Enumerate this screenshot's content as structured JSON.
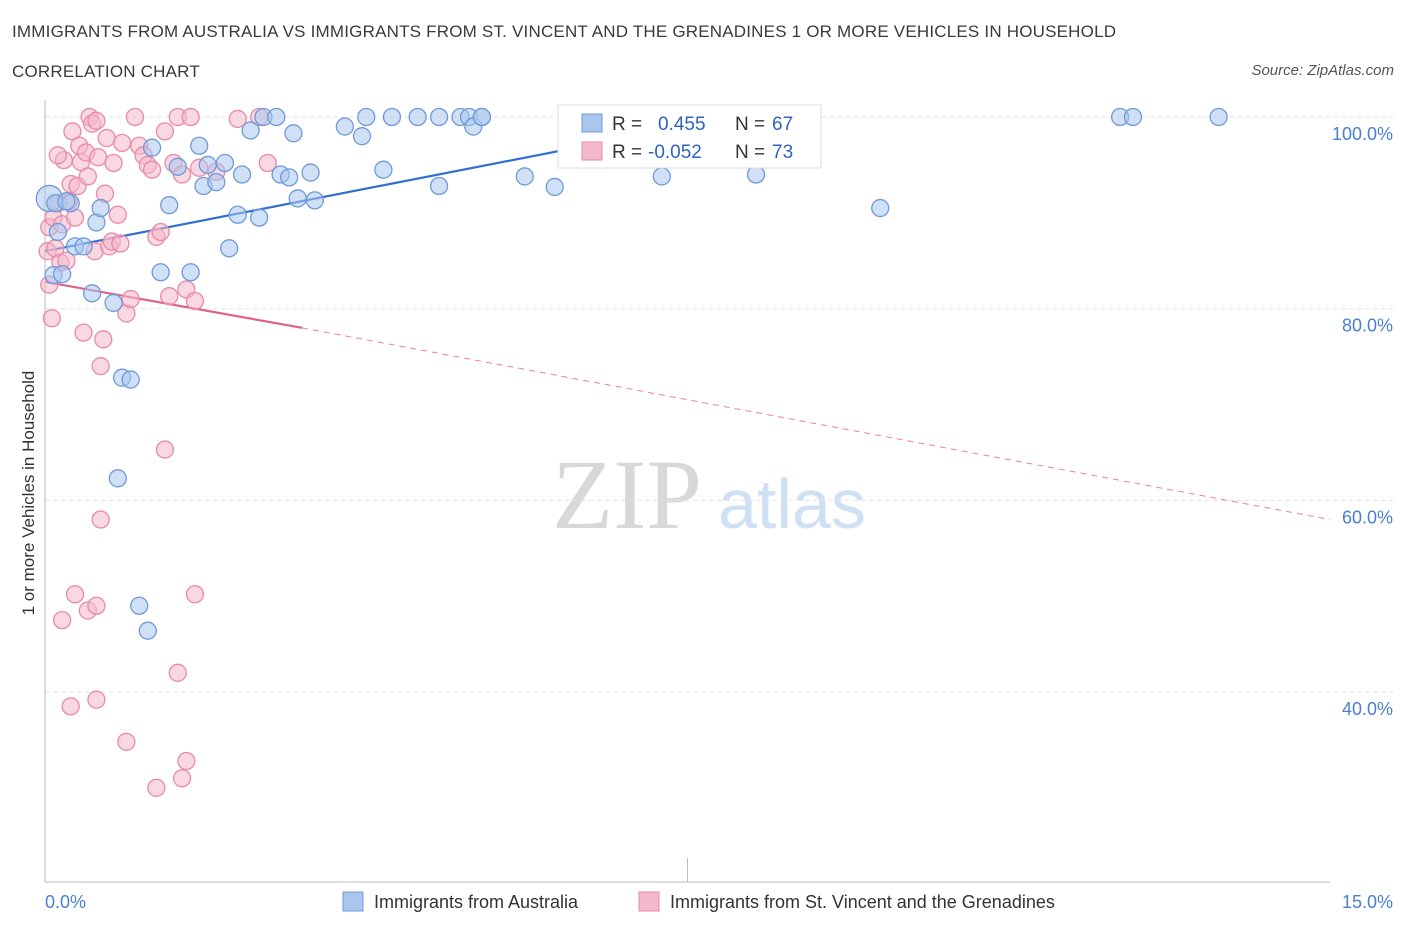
{
  "title": "IMMIGRANTS FROM AUSTRALIA VS IMMIGRANTS FROM ST. VINCENT AND THE GRENADINES 1 OR MORE VEHICLES IN HOUSEHOLD",
  "subtitle": "CORRELATION CHART",
  "source": "Source: ZipAtlas.com",
  "watermark": {
    "zip": "ZIP",
    "atlas": "atlas"
  },
  "colors": {
    "blue_fill": "#a9c6ee",
    "blue_stroke": "#6f9ad8",
    "blue_line": "#2f6fd0",
    "pink_fill": "#f4b8cb",
    "pink_stroke": "#e88aa8",
    "pink_line": "#e0628c",
    "axis_text": "#4a7fcf",
    "grid": "#e2e2e2"
  },
  "legend_box": {
    "rows": [
      {
        "r_label": "R =",
        "r_value": "0.455",
        "n_label": "N =",
        "n_value": "67",
        "series": "blue"
      },
      {
        "r_label": "R =",
        "r_value": "-0.052",
        "n_label": "N =",
        "n_value": "73",
        "series": "pink"
      }
    ]
  },
  "bottom_legend": [
    {
      "label": "Immigrants from Australia",
      "series": "blue"
    },
    {
      "label": "Immigrants from St. Vincent and the Grenadines",
      "series": "pink"
    }
  ],
  "chart_data": {
    "type": "scatter",
    "title": "IMMIGRANTS FROM AUSTRALIA VS IMMIGRANTS FROM ST. VINCENT AND THE GRENADINES 1 OR MORE VEHICLES IN HOUSEHOLD",
    "xlabel": "",
    "ylabel": "1 or more Vehicles in Household",
    "xlim": [
      0,
      15
    ],
    "ylim": [
      20,
      102
    ],
    "x_tick_labels": [
      "0.0%",
      "15.0%"
    ],
    "y_ticks": [
      100,
      80,
      60,
      40
    ],
    "y_tick_labels": [
      "100.0%",
      "80.0%",
      "60.0%",
      "40.0%"
    ],
    "series": [
      {
        "name": "Immigrants from Australia",
        "color": "#6f9ad8",
        "R": 0.455,
        "N": 67,
        "trend": {
          "x": [
            0.0,
            8.5
          ],
          "y": [
            86.0,
            100.8
          ]
        },
        "points": [
          [
            0.05,
            91.5
          ],
          [
            0.1,
            83.5
          ],
          [
            0.12,
            91.0
          ],
          [
            0.15,
            88.0
          ],
          [
            0.2,
            83.6
          ],
          [
            0.3,
            91.0
          ],
          [
            0.35,
            86.5
          ],
          [
            0.45,
            86.5
          ],
          [
            0.55,
            81.6
          ],
          [
            0.6,
            89.0
          ],
          [
            0.65,
            90.5
          ],
          [
            0.8,
            80.6
          ],
          [
            0.9,
            72.8
          ],
          [
            1.0,
            72.6
          ],
          [
            0.85,
            62.3
          ],
          [
            1.1,
            49.0
          ],
          [
            1.2,
            46.4
          ],
          [
            1.25,
            96.8
          ],
          [
            1.35,
            83.8
          ],
          [
            1.45,
            90.8
          ],
          [
            1.55,
            94.8
          ],
          [
            1.7,
            83.8
          ],
          [
            1.8,
            97.0
          ],
          [
            1.85,
            92.8
          ],
          [
            1.9,
            95.0
          ],
          [
            2.0,
            93.2
          ],
          [
            2.1,
            95.2
          ],
          [
            2.15,
            86.3
          ],
          [
            2.25,
            89.8
          ],
          [
            2.3,
            94.0
          ],
          [
            2.4,
            98.6
          ],
          [
            2.5,
            89.5
          ],
          [
            2.55,
            100.0
          ],
          [
            2.7,
            100.0
          ],
          [
            2.75,
            94.0
          ],
          [
            2.85,
            93.7
          ],
          [
            2.9,
            98.3
          ],
          [
            2.95,
            91.5
          ],
          [
            3.1,
            94.2
          ],
          [
            3.15,
            91.3
          ],
          [
            3.5,
            99.0
          ],
          [
            3.7,
            98.0
          ],
          [
            3.75,
            100.0
          ],
          [
            3.95,
            94.5
          ],
          [
            4.05,
            100.0
          ],
          [
            4.35,
            100.0
          ],
          [
            4.6,
            100.0
          ],
          [
            4.6,
            92.8
          ],
          [
            4.85,
            100.0
          ],
          [
            4.95,
            100.0
          ],
          [
            5.0,
            99.0
          ],
          [
            5.1,
            100.0
          ],
          [
            5.1,
            100.0
          ],
          [
            5.6,
            93.8
          ],
          [
            5.95,
            92.7
          ],
          [
            6.3,
            100.0
          ],
          [
            6.75,
            100.0
          ],
          [
            7.2,
            93.8
          ],
          [
            7.7,
            100.0
          ],
          [
            7.8,
            100.0
          ],
          [
            8.3,
            94.0
          ],
          [
            8.55,
            100.0
          ],
          [
            9.75,
            90.5
          ],
          [
            12.55,
            100.0
          ],
          [
            12.7,
            100.0
          ],
          [
            13.7,
            100.0
          ],
          [
            0.25,
            91.2
          ]
        ]
      },
      {
        "name": "Immigrants from St. Vincent and the Grenadines",
        "color": "#e88aa8",
        "R": -0.052,
        "N": 73,
        "trend_solid": {
          "x": [
            0.0,
            3.0
          ],
          "y": [
            82.8,
            78.0
          ]
        },
        "trend_dashed": {
          "x": [
            3.0,
            15.0
          ],
          "y": [
            78.0,
            58.0
          ]
        },
        "points": [
          [
            0.03,
            86.0
          ],
          [
            0.05,
            88.5
          ],
          [
            0.05,
            82.5
          ],
          [
            0.08,
            79.0
          ],
          [
            0.1,
            89.5
          ],
          [
            0.12,
            86.3
          ],
          [
            0.15,
            91.0
          ],
          [
            0.18,
            84.8
          ],
          [
            0.2,
            88.8
          ],
          [
            0.22,
            95.5
          ],
          [
            0.25,
            85.0
          ],
          [
            0.28,
            91.2
          ],
          [
            0.3,
            93.0
          ],
          [
            0.32,
            98.5
          ],
          [
            0.35,
            89.5
          ],
          [
            0.38,
            92.8
          ],
          [
            0.4,
            97.0
          ],
          [
            0.42,
            95.3
          ],
          [
            0.45,
            77.5
          ],
          [
            0.48,
            96.3
          ],
          [
            0.5,
            93.8
          ],
          [
            0.52,
            100.0
          ],
          [
            0.55,
            99.3
          ],
          [
            0.58,
            86.0
          ],
          [
            0.6,
            99.6
          ],
          [
            0.62,
            95.8
          ],
          [
            0.65,
            74.0
          ],
          [
            0.68,
            76.8
          ],
          [
            0.7,
            92.0
          ],
          [
            0.72,
            97.8
          ],
          [
            0.75,
            86.5
          ],
          [
            0.78,
            87.0
          ],
          [
            0.8,
            95.2
          ],
          [
            0.85,
            89.8
          ],
          [
            0.88,
            86.8
          ],
          [
            0.9,
            97.3
          ],
          [
            0.95,
            79.5
          ],
          [
            1.0,
            81.0
          ],
          [
            1.05,
            100.0
          ],
          [
            1.1,
            97.0
          ],
          [
            1.15,
            96.0
          ],
          [
            1.2,
            95.0
          ],
          [
            1.25,
            94.5
          ],
          [
            1.3,
            87.5
          ],
          [
            1.35,
            88.0
          ],
          [
            1.4,
            98.5
          ],
          [
            1.45,
            81.3
          ],
          [
            1.5,
            95.2
          ],
          [
            1.55,
            100.0
          ],
          [
            1.6,
            94.0
          ],
          [
            1.65,
            82.0
          ],
          [
            1.7,
            100.0
          ],
          [
            1.75,
            80.8
          ],
          [
            1.8,
            94.7
          ],
          [
            2.0,
            94.3
          ],
          [
            2.25,
            99.8
          ],
          [
            2.5,
            100.0
          ],
          [
            2.6,
            95.2
          ],
          [
            0.2,
            47.5
          ],
          [
            0.35,
            50.2
          ],
          [
            0.5,
            48.5
          ],
          [
            0.6,
            49.0
          ],
          [
            0.65,
            58.0
          ],
          [
            0.3,
            38.5
          ],
          [
            0.6,
            39.2
          ],
          [
            0.95,
            34.8
          ],
          [
            1.3,
            30.0
          ],
          [
            1.55,
            42.0
          ],
          [
            1.6,
            31.0
          ],
          [
            1.65,
            32.8
          ],
          [
            1.75,
            50.2
          ],
          [
            1.4,
            65.3
          ],
          [
            0.15,
            96.0
          ]
        ]
      }
    ]
  }
}
